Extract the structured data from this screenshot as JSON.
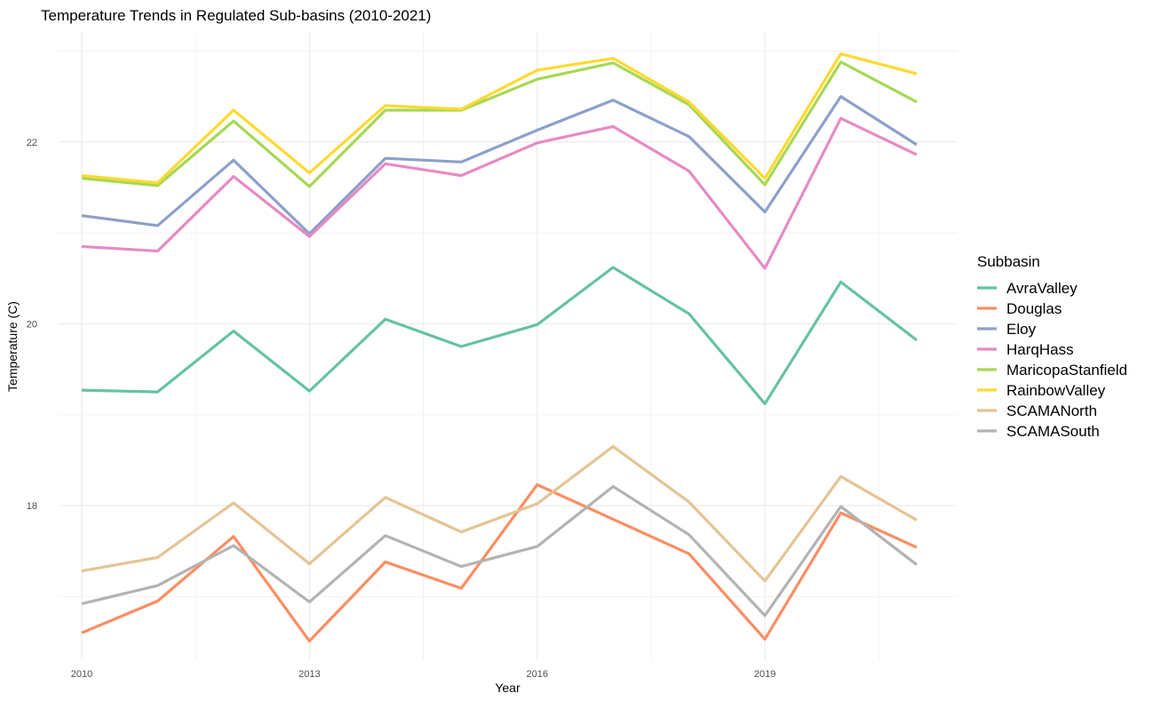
{
  "chart_data": {
    "type": "line",
    "title": "Temperature Trends in Regulated Sub-basins (2010-2021)",
    "xlabel": "Year",
    "ylabel": "Temperature (C)",
    "x": [
      2010,
      2011,
      2012,
      2013,
      2014,
      2015,
      2016,
      2017,
      2018,
      2019,
      2020,
      2021
    ],
    "x_ticks": [
      2010,
      2013,
      2016,
      2019
    ],
    "x_tick_labels": [
      "2010",
      "2013",
      "2016",
      "2019"
    ],
    "xlim": [
      2010,
      2021
    ],
    "y_ticks": [
      18,
      20,
      22
    ],
    "y_tick_labels": [
      "18",
      "20",
      "22"
    ],
    "ylim": [
      16.3,
      23.2
    ],
    "grid": true,
    "legend": {
      "title": "Subbasin",
      "position": "right"
    },
    "series": [
      {
        "name": "AvraValley",
        "color": "#66C2A5",
        "values": [
          19.27,
          19.25,
          19.92,
          19.26,
          20.05,
          19.75,
          19.99,
          20.62,
          20.11,
          19.12,
          20.46,
          19.82
        ]
      },
      {
        "name": "Douglas",
        "color": "#FC8D62",
        "values": [
          16.6,
          16.95,
          17.66,
          16.51,
          17.38,
          17.09,
          18.23,
          17.85,
          17.47,
          16.53,
          17.92,
          17.54
        ]
      },
      {
        "name": "Eloy",
        "color": "#8DA0CB",
        "values": [
          21.19,
          21.08,
          21.8,
          20.99,
          21.82,
          21.78,
          22.13,
          22.46,
          22.06,
          21.23,
          22.5,
          21.97
        ]
      },
      {
        "name": "HarqHass",
        "color": "#E78AC3",
        "values": [
          20.85,
          20.8,
          21.62,
          20.96,
          21.76,
          21.63,
          21.99,
          22.17,
          21.68,
          20.61,
          22.26,
          21.86
        ]
      },
      {
        "name": "MaricopaStanfield",
        "color": "#A6D854",
        "values": [
          21.6,
          21.52,
          22.23,
          21.51,
          22.35,
          22.35,
          22.69,
          22.87,
          22.41,
          21.53,
          22.88,
          22.44
        ]
      },
      {
        "name": "RainbowValley",
        "color": "#FFD92F",
        "values": [
          21.63,
          21.55,
          22.35,
          21.66,
          22.4,
          22.36,
          22.79,
          22.92,
          22.44,
          21.6,
          22.97,
          22.75
        ]
      },
      {
        "name": "SCAMANorth",
        "color": "#E5C494",
        "values": [
          17.28,
          17.43,
          18.03,
          17.36,
          18.09,
          17.71,
          18.02,
          18.65,
          18.04,
          17.17,
          18.32,
          17.84
        ]
      },
      {
        "name": "SCAMASouth",
        "color": "#B3B3B3",
        "values": [
          16.92,
          17.12,
          17.56,
          16.94,
          17.67,
          17.33,
          17.55,
          18.21,
          17.68,
          16.79,
          17.99,
          17.35
        ]
      }
    ]
  }
}
